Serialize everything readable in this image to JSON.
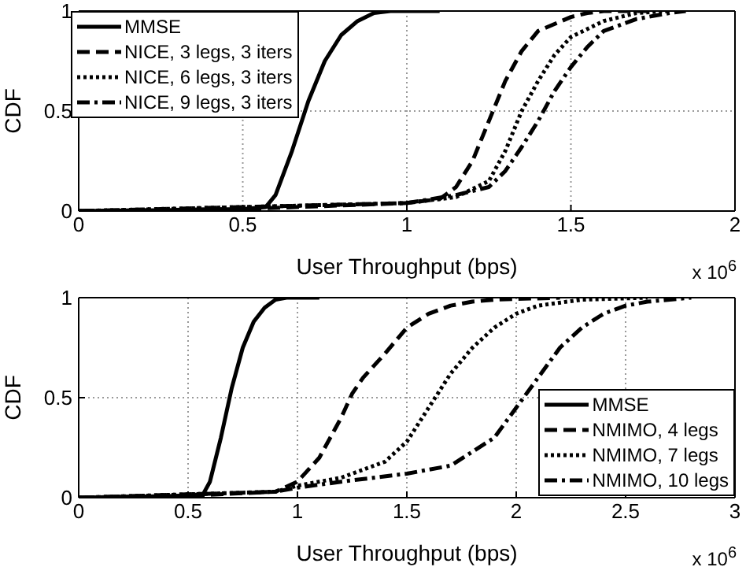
{
  "chart_data": [
    {
      "type": "line",
      "xlabel": "User Throughput (bps)",
      "ylabel": "CDF",
      "annotations": [
        "x 10$^{6}$"
      ],
      "xlim": [
        0,
        2
      ],
      "xticks": [
        0,
        0.5,
        1,
        1.5,
        2
      ],
      "ylim": [
        0,
        1
      ],
      "yticks": [
        0,
        0.5,
        1
      ],
      "grid": true,
      "legend": "top left",
      "marker": "none",
      "series": [
        {
          "name": "MMSE",
          "color": "#000000",
          "line_style": "solid",
          "x": [
            0,
            0.3,
            0.5,
            0.57,
            0.6,
            0.65,
            0.7,
            0.75,
            0.8,
            0.85,
            0.9,
            0.95,
            1.1
          ],
          "values": [
            0,
            0.005,
            0.01,
            0.02,
            0.08,
            0.3,
            0.55,
            0.75,
            0.88,
            0.95,
            0.99,
            1,
            1
          ]
        },
        {
          "name": "NICE, 3 legs, 3 iters",
          "color": "#000000",
          "line_style": "dashed",
          "x": [
            0,
            0.5,
            1,
            1.1,
            1.15,
            1.2,
            1.25,
            1.3,
            1.35,
            1.4,
            1.5,
            1.55,
            1.6,
            1.75
          ],
          "values": [
            0,
            0.01,
            0.04,
            0.06,
            0.12,
            0.25,
            0.45,
            0.65,
            0.8,
            0.9,
            0.97,
            0.99,
            1,
            1
          ]
        },
        {
          "name": "NICE, 6 legs, 3 iters",
          "color": "#000000",
          "line_style": "dotted",
          "x": [
            0,
            1,
            1.15,
            1.25,
            1.3,
            1.35,
            1.4,
            1.45,
            1.5,
            1.6,
            1.7,
            1.8
          ],
          "values": [
            0,
            0.04,
            0.07,
            0.15,
            0.3,
            0.5,
            0.65,
            0.78,
            0.87,
            0.95,
            0.99,
            1
          ]
        },
        {
          "name": "NICE, 9 legs, 3 iters",
          "color": "#000000",
          "line_style": "dashdot",
          "x": [
            0,
            1,
            1.15,
            1.25,
            1.3,
            1.35,
            1.4,
            1.45,
            1.5,
            1.55,
            1.6,
            1.7,
            1.8,
            1.85
          ],
          "values": [
            0,
            0.04,
            0.08,
            0.12,
            0.2,
            0.32,
            0.45,
            0.6,
            0.72,
            0.82,
            0.9,
            0.96,
            0.99,
            1
          ]
        }
      ]
    },
    {
      "type": "line",
      "xlabel": "User Throughput (bps)",
      "ylabel": "CDF",
      "annotations": [
        "x 10$^{6}$"
      ],
      "xlim": [
        0,
        3
      ],
      "xticks": [
        0,
        0.5,
        1,
        1.5,
        2,
        2.5,
        3
      ],
      "ylim": [
        0,
        1
      ],
      "yticks": [
        0,
        0.5,
        1
      ],
      "grid": true,
      "legend": "bottom right",
      "marker": "none",
      "series": [
        {
          "name": "MMSE",
          "color": "#000000",
          "line_style": "solid",
          "x": [
            0,
            0.5,
            0.57,
            0.6,
            0.65,
            0.7,
            0.75,
            0.8,
            0.85,
            0.9,
            0.95,
            1.1
          ],
          "values": [
            0,
            0.01,
            0.02,
            0.08,
            0.3,
            0.55,
            0.75,
            0.88,
            0.95,
            0.99,
            1,
            1
          ]
        },
        {
          "name": "NMIMO, 4 legs",
          "color": "#000000",
          "line_style": "dashed",
          "x": [
            0,
            0.5,
            0.9,
            1,
            1.1,
            1.2,
            1.25,
            1.3,
            1.4,
            1.5,
            1.6,
            1.7,
            1.8,
            1.9,
            2.2
          ],
          "values": [
            0,
            0.01,
            0.03,
            0.08,
            0.2,
            0.4,
            0.52,
            0.6,
            0.72,
            0.85,
            0.92,
            0.96,
            0.98,
            0.99,
            1
          ]
        },
        {
          "name": "NMIMO, 7 legs",
          "color": "#000000",
          "line_style": "dotted",
          "x": [
            0,
            0.9,
            1,
            1.2,
            1.4,
            1.5,
            1.6,
            1.7,
            1.8,
            1.9,
            2,
            2.1,
            2.3,
            2.6
          ],
          "values": [
            0,
            0.03,
            0.06,
            0.1,
            0.18,
            0.28,
            0.45,
            0.62,
            0.75,
            0.85,
            0.92,
            0.96,
            0.99,
            1
          ]
        },
        {
          "name": "NMIMO, 10 legs",
          "color": "#000000",
          "line_style": "dashdot",
          "x": [
            0,
            0.9,
            1,
            1.2,
            1.5,
            1.7,
            1.9,
            2,
            2.1,
            2.2,
            2.3,
            2.4,
            2.5,
            2.6,
            2.8
          ],
          "values": [
            0,
            0.03,
            0.05,
            0.08,
            0.12,
            0.16,
            0.3,
            0.45,
            0.6,
            0.75,
            0.85,
            0.92,
            0.96,
            0.98,
            1
          ]
        }
      ]
    }
  ]
}
